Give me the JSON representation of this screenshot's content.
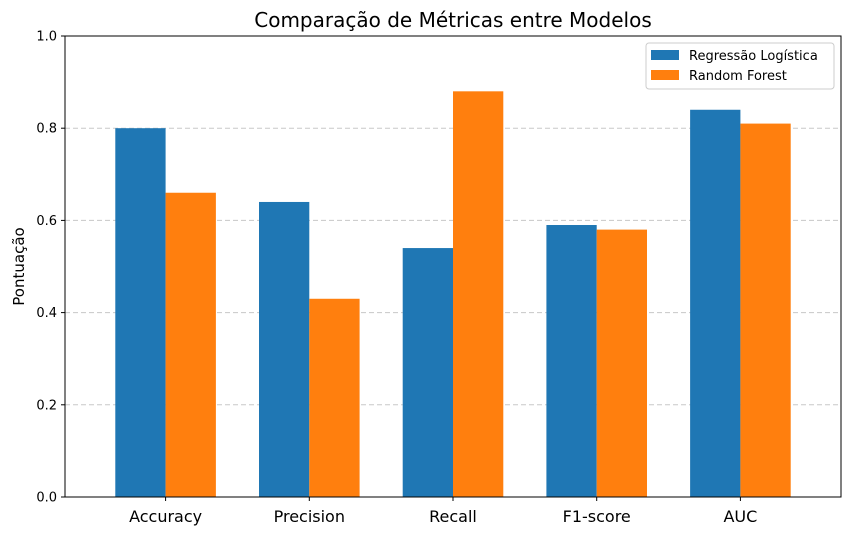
{
  "chart_data": {
    "type": "bar",
    "title": "Comparação de Métricas entre Modelos",
    "xlabel": "",
    "ylabel": "Pontuação",
    "categories": [
      "Accuracy",
      "Precision",
      "Recall",
      "F1-score",
      "AUC"
    ],
    "series": [
      {
        "name": "Regressão Logística",
        "color": "#1f77b4",
        "values": [
          0.8,
          0.64,
          0.54,
          0.59,
          0.84
        ]
      },
      {
        "name": "Random Forest",
        "color": "#ff7f0e",
        "values": [
          0.66,
          0.43,
          0.88,
          0.58,
          0.81
        ]
      }
    ],
    "ylim": [
      0,
      1.0
    ],
    "yticks": [
      "0.0",
      "0.2",
      "0.4",
      "0.6",
      "0.8",
      "1.0"
    ],
    "grid": "y-dashed",
    "legend_position": "top-right"
  }
}
